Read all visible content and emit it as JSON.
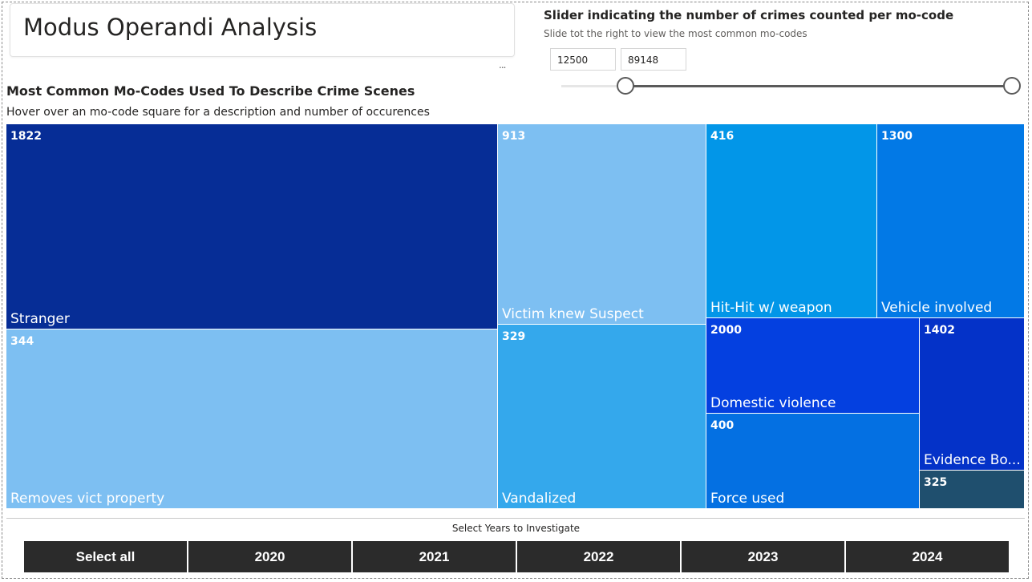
{
  "header": {
    "title": "Modus Operandi Analysis",
    "more_icon": "..."
  },
  "slider": {
    "title": "Slider indicating the number of crimes counted per mo-code",
    "subtitle": "Slide tot the right to view the most common mo-codes",
    "min_value": "12500",
    "max_value": "89148"
  },
  "treemap": {
    "title": "Most Common Mo-Codes Used To Describe Crime Scenes",
    "subtitle": "Hover over an mo-code square for a description and number of occurences",
    "tiles": [
      {
        "count": "1822",
        "label": "Stranger",
        "color": "#062d96"
      },
      {
        "count": "344",
        "label": "Removes vict property",
        "color": "#7dbff2"
      },
      {
        "count": "913",
        "label": "Victim knew Suspect",
        "color": "#7dbff2"
      },
      {
        "count": "329",
        "label": "Vandalized",
        "color": "#34a8ec"
      },
      {
        "count": "416",
        "label": "Hit-Hit w/ weapon",
        "color": "#0296e8"
      },
      {
        "count": "1300",
        "label": "Vehicle involved",
        "color": "#0279e6"
      },
      {
        "count": "2000",
        "label": "Domestic violence",
        "color": "#0440e0"
      },
      {
        "count": "400",
        "label": "Force used",
        "color": "#0470e2"
      },
      {
        "count": "1402",
        "label": "Evidence Bo...",
        "color": "#0432c8"
      },
      {
        "count": "325",
        "label": "",
        "color": "#1f4f6e"
      }
    ]
  },
  "years": {
    "title": "Select Years to Investigate",
    "buttons": [
      "Select all",
      "2020",
      "2021",
      "2022",
      "2023",
      "2024"
    ]
  }
}
